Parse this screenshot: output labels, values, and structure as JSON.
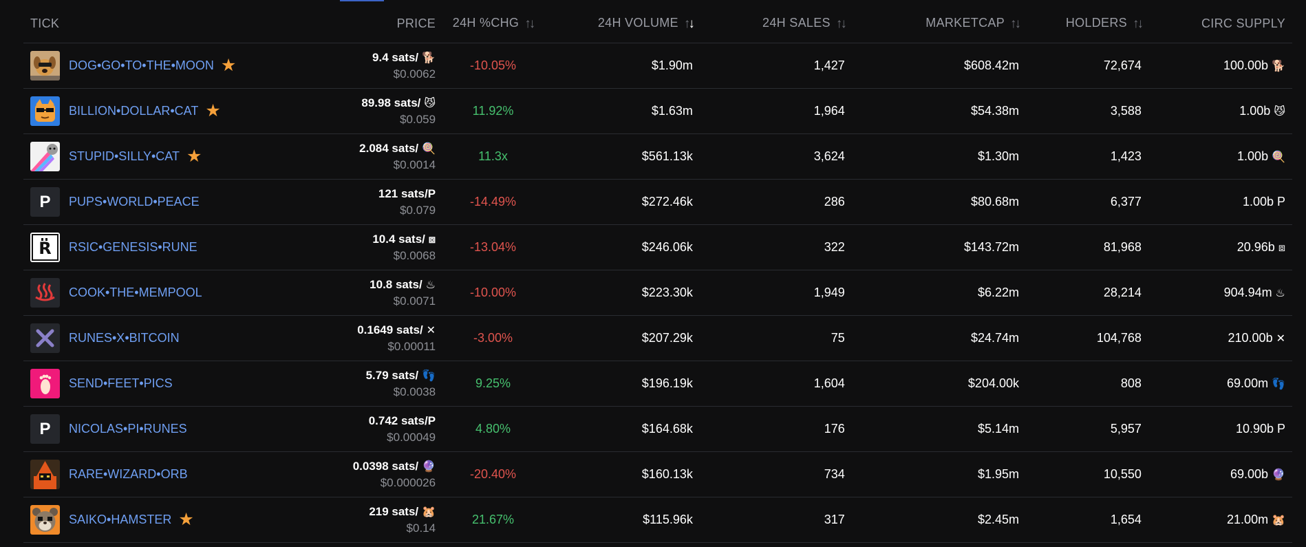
{
  "headers": {
    "tick": "TICK",
    "price": "PRICE",
    "change": "24H %CHG",
    "volume": "24H VOLUME",
    "sales": "24H SALES",
    "marketcap": "MARKETCAP",
    "holders": "HOLDERS",
    "supply": "CIRC SUPPLY"
  },
  "colors": {
    "link": "#6f9ff2",
    "negative": "#e0544e",
    "positive": "#46c06e",
    "star": "#f5a03a",
    "background": "#0f0f10"
  },
  "rows": [
    {
      "tick": "DOG•GO•TO•THE•MOON",
      "starred": true,
      "thumb_icon": "dog-image-icon",
      "thumb_letter": "",
      "price_sats": "9.4 sats/",
      "symbol": "🐕",
      "price_usd": "$0.0062",
      "change": "-10.05%",
      "change_dir": "neg",
      "volume": "$1.90m",
      "sales": "1,427",
      "marketcap": "$608.42m",
      "holders": "72,674",
      "supply": "100.00b"
    },
    {
      "tick": "BILLION•DOLLAR•CAT",
      "starred": true,
      "thumb_icon": "cat-image-icon",
      "thumb_letter": "",
      "price_sats": "89.98 sats/",
      "symbol": "😼",
      "price_usd": "$0.059",
      "change": "11.92%",
      "change_dir": "pos",
      "volume": "$1.63m",
      "sales": "1,964",
      "marketcap": "$54.38m",
      "holders": "3,588",
      "supply": "1.00b"
    },
    {
      "tick": "STUPID•SILLY•CAT",
      "starred": true,
      "thumb_icon": "rainbow-cat-image-icon",
      "thumb_letter": "",
      "price_sats": "2.084 sats/",
      "symbol": "🍭",
      "price_usd": "$0.0014",
      "change": "11.3x",
      "change_dir": "pos",
      "volume": "$561.13k",
      "sales": "3,624",
      "marketcap": "$1.30m",
      "holders": "1,423",
      "supply": "1.00b"
    },
    {
      "tick": "PUPS•WORLD•PEACE",
      "starred": false,
      "thumb_icon": "letter-p-icon",
      "thumb_letter": "P",
      "price_sats": "121 sats/P",
      "symbol": "",
      "price_usd": "$0.079",
      "change": "-14.49%",
      "change_dir": "neg",
      "volume": "$272.46k",
      "sales": "286",
      "marketcap": "$80.68m",
      "holders": "6,377",
      "supply": "1.00b P"
    },
    {
      "tick": "RSIC•GENESIS•RUNE",
      "starred": false,
      "thumb_icon": "rsic-logo-icon",
      "thumb_letter": "",
      "price_sats": "10.4 sats/",
      "symbol": "⧈",
      "price_usd": "$0.0068",
      "change": "-13.04%",
      "change_dir": "neg",
      "volume": "$246.06k",
      "sales": "322",
      "marketcap": "$143.72m",
      "holders": "81,968",
      "supply": "20.96b"
    },
    {
      "tick": "COOK•THE•MEMPOOL",
      "starred": false,
      "thumb_icon": "hot-springs-icon",
      "thumb_letter": "",
      "price_sats": "10.8 sats/",
      "symbol": "♨",
      "price_usd": "$0.0071",
      "change": "-10.00%",
      "change_dir": "neg",
      "volume": "$223.30k",
      "sales": "1,949",
      "marketcap": "$6.22m",
      "holders": "28,214",
      "supply": "904.94m"
    },
    {
      "tick": "RUNES•X•BITCOIN",
      "starred": false,
      "thumb_icon": "x-mark-icon",
      "thumb_letter": "",
      "price_sats": "0.1649 sats/",
      "symbol": "✕",
      "price_usd": "$0.00011",
      "change": "-3.00%",
      "change_dir": "neg",
      "volume": "$207.29k",
      "sales": "75",
      "marketcap": "$24.74m",
      "holders": "104,768",
      "supply": "210.00b"
    },
    {
      "tick": "SEND•FEET•PICS",
      "starred": false,
      "thumb_icon": "foot-image-icon",
      "thumb_letter": "",
      "price_sats": "5.79 sats/",
      "symbol": "👣",
      "price_usd": "$0.0038",
      "change": "9.25%",
      "change_dir": "pos",
      "volume": "$196.19k",
      "sales": "1,604",
      "marketcap": "$204.00k",
      "holders": "808",
      "supply": "69.00m"
    },
    {
      "tick": "NICOLAS•PI•RUNES",
      "starred": false,
      "thumb_icon": "letter-p-icon",
      "thumb_letter": "P",
      "price_sats": "0.742 sats/P",
      "symbol": "",
      "price_usd": "$0.00049",
      "change": "4.80%",
      "change_dir": "pos",
      "volume": "$164.68k",
      "sales": "176",
      "marketcap": "$5.14m",
      "holders": "5,957",
      "supply": "10.90b P"
    },
    {
      "tick": "RARE•WIZARD•ORB",
      "starred": false,
      "thumb_icon": "wizard-image-icon",
      "thumb_letter": "",
      "price_sats": "0.0398 sats/",
      "symbol": "🔮",
      "price_usd": "$0.000026",
      "change": "-20.40%",
      "change_dir": "neg",
      "volume": "$160.13k",
      "sales": "734",
      "marketcap": "$1.95m",
      "holders": "10,550",
      "supply": "69.00b"
    },
    {
      "tick": "SAIKO•HAMSTER",
      "starred": true,
      "thumb_icon": "hamster-image-icon",
      "thumb_letter": "",
      "price_sats": "219 sats/",
      "symbol": "🐹",
      "price_usd": "$0.14",
      "change": "21.67%",
      "change_dir": "pos",
      "volume": "$115.96k",
      "sales": "317",
      "marketcap": "$2.45m",
      "holders": "1,654",
      "supply": "21.00m"
    }
  ]
}
